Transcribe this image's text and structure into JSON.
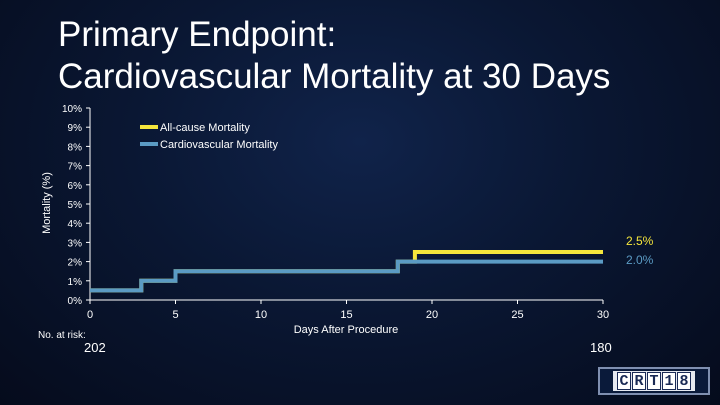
{
  "slide": {
    "title_line1": "Primary Endpoint:",
    "title_line2": "Cardiovascular Mortality at 30 Days",
    "logo_text": "CRT18"
  },
  "risk": {
    "label": "No. at risk:",
    "start_value": "202",
    "end_value": "180"
  },
  "chart_data": {
    "type": "line",
    "step": true,
    "xlabel": "Days After Procedure",
    "ylabel": "Mortality (%)",
    "xlim": [
      0,
      30
    ],
    "ylim": [
      0,
      10
    ],
    "x_ticks": [
      0,
      5,
      10,
      15,
      20,
      25,
      30
    ],
    "y_ticks": [
      "0%",
      "1%",
      "2%",
      "3%",
      "4%",
      "5%",
      "6%",
      "7%",
      "8%",
      "9%",
      "10%"
    ],
    "legend_position": "top-center",
    "series": [
      {
        "name": "All-cause Mortality",
        "color": "#f5e63c",
        "x": [
          0,
          3,
          3,
          5,
          5,
          18,
          18,
          19,
          19,
          30
        ],
        "y": [
          0.5,
          0.5,
          1.0,
          1.0,
          1.5,
          1.5,
          2.0,
          2.0,
          2.5,
          2.5
        ],
        "end_label": "2.5%"
      },
      {
        "name": "Cardiovascular Mortality",
        "color": "#5b9bc4",
        "x": [
          0,
          3,
          3,
          5,
          5,
          18,
          18,
          30
        ],
        "y": [
          0.5,
          0.5,
          1.0,
          1.0,
          1.5,
          1.5,
          2.0,
          2.0
        ],
        "end_label": "2.0%"
      }
    ]
  }
}
